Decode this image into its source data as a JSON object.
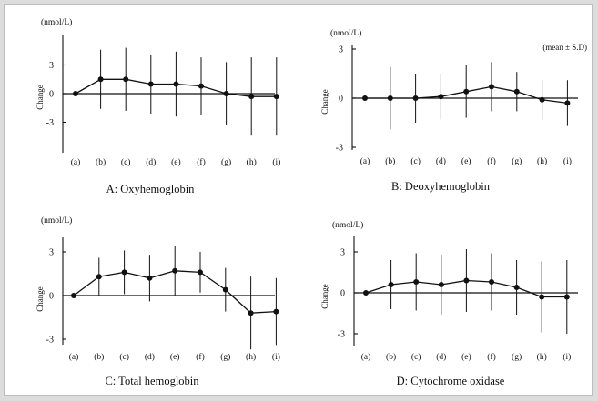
{
  "figure": {
    "sd_note": "(mean ± S.D)"
  },
  "chart_data": [
    {
      "type": "line",
      "title": "A: Oxyhemoglobin",
      "ylabel": "Change",
      "unit": "(nmol/L)",
      "categories": [
        "(a)",
        "(b)",
        "(c)",
        "(d)",
        "(e)",
        "(f)",
        "(g)",
        "(h)",
        "(i)"
      ],
      "values": [
        0,
        1.5,
        1.5,
        1.0,
        1.0,
        0.8,
        0,
        -0.3,
        -0.3
      ],
      "error": [
        0,
        3.1,
        3.3,
        3.1,
        3.4,
        3.0,
        3.3,
        4.1,
        4.1
      ],
      "yticks": [
        3,
        0,
        -3
      ],
      "ylim": [
        -5,
        6
      ],
      "grid": false
    },
    {
      "type": "line",
      "title": "B: Deoxyhemoglobin",
      "ylabel": "Change",
      "unit": "(nmol/L)",
      "categories": [
        "(a)",
        "(b)",
        "(c)",
        "(d)",
        "(e)",
        "(f)",
        "(g)",
        "(h)",
        "(i)"
      ],
      "values": [
        0,
        0,
        0,
        0.1,
        0.4,
        0.7,
        0.4,
        -0.1,
        -0.3
      ],
      "error": [
        0,
        1.9,
        1.5,
        1.4,
        1.6,
        1.5,
        1.2,
        1.2,
        1.4
      ],
      "yticks": [
        3,
        0,
        -3
      ],
      "ylim": [
        -3,
        3
      ],
      "grid": false
    },
    {
      "type": "line",
      "title": "C: Total hemoglobin",
      "ylabel": "Change",
      "unit": "(nmol/L)",
      "categories": [
        "(a)",
        "(b)",
        "(c)",
        "(d)",
        "(e)",
        "(f)",
        "(g)",
        "(h)",
        "(i)"
      ],
      "values": [
        0,
        1.3,
        1.6,
        1.2,
        1.7,
        1.6,
        0.4,
        -1.2,
        -1.1
      ],
      "error": [
        0,
        1.3,
        1.5,
        1.6,
        1.7,
        1.4,
        1.5,
        2.5,
        2.3
      ],
      "yticks": [
        3,
        0,
        -3
      ],
      "ylim": [
        -4,
        4
      ],
      "grid": false
    },
    {
      "type": "line",
      "title": "D:  Cytochrome oxidase",
      "ylabel": "Change",
      "unit": "(nmol/L)",
      "categories": [
        "(a)",
        "(b)",
        "(c)",
        "(d)",
        "(e)",
        "(f)",
        "(g)",
        "(h)",
        "(i)"
      ],
      "values": [
        0,
        0.6,
        0.8,
        0.6,
        0.9,
        0.8,
        0.4,
        -0.3,
        -0.3
      ],
      "error": [
        0,
        1.8,
        2.1,
        2.2,
        2.3,
        2.1,
        2.0,
        2.6,
        2.7
      ],
      "yticks": [
        3,
        0,
        -3
      ],
      "ylim": [
        -4,
        4
      ],
      "grid": false
    }
  ]
}
